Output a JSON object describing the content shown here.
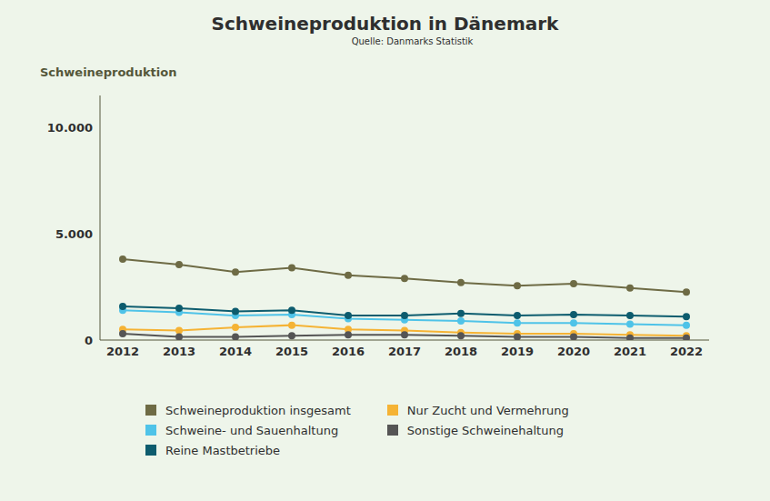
{
  "chart_data": {
    "type": "line",
    "title": "Schweineproduktion in Dänemark",
    "subtitle": "Quelle: Danmarks Statistik",
    "y_label": "Schweineproduktion",
    "categories": [
      "2012",
      "2013",
      "2014",
      "2015",
      "2016",
      "2017",
      "2018",
      "2019",
      "2020",
      "2021",
      "2022"
    ],
    "series": [
      {
        "name": "Schweineproduktion insgesamt",
        "color": "#6e6b45",
        "values": [
          3800,
          3550,
          3200,
          3400,
          3050,
          2900,
          2700,
          2550,
          2650,
          2450,
          2250
        ]
      },
      {
        "name": "Schweine- und Sauenhaltung",
        "color": "#4fc3e8",
        "values": [
          1400,
          1300,
          1150,
          1200,
          1000,
          950,
          900,
          800,
          800,
          750,
          700
        ]
      },
      {
        "name": "Reine Mastbetriebe",
        "color": "#0d5c6e",
        "values": [
          1580,
          1500,
          1350,
          1400,
          1150,
          1150,
          1250,
          1150,
          1200,
          1150,
          1100
        ]
      },
      {
        "name": "Nur Zucht und Vermehrung",
        "color": "#f5b335",
        "values": [
          500,
          450,
          600,
          700,
          500,
          450,
          350,
          300,
          300,
          250,
          200
        ]
      },
      {
        "name": "Sonstige Schweinehaltung",
        "color": "#555555",
        "values": [
          300,
          150,
          150,
          200,
          250,
          250,
          200,
          150,
          150,
          100,
          100
        ]
      }
    ],
    "ylim": [
      0,
      11500
    ],
    "yticks": [
      0,
      {
        "value": 5000,
        "label": "5.000"
      },
      {
        "value": 10000,
        "label": "10.000"
      }
    ],
    "grid": false,
    "legend": "bottom",
    "marker": "circle"
  }
}
